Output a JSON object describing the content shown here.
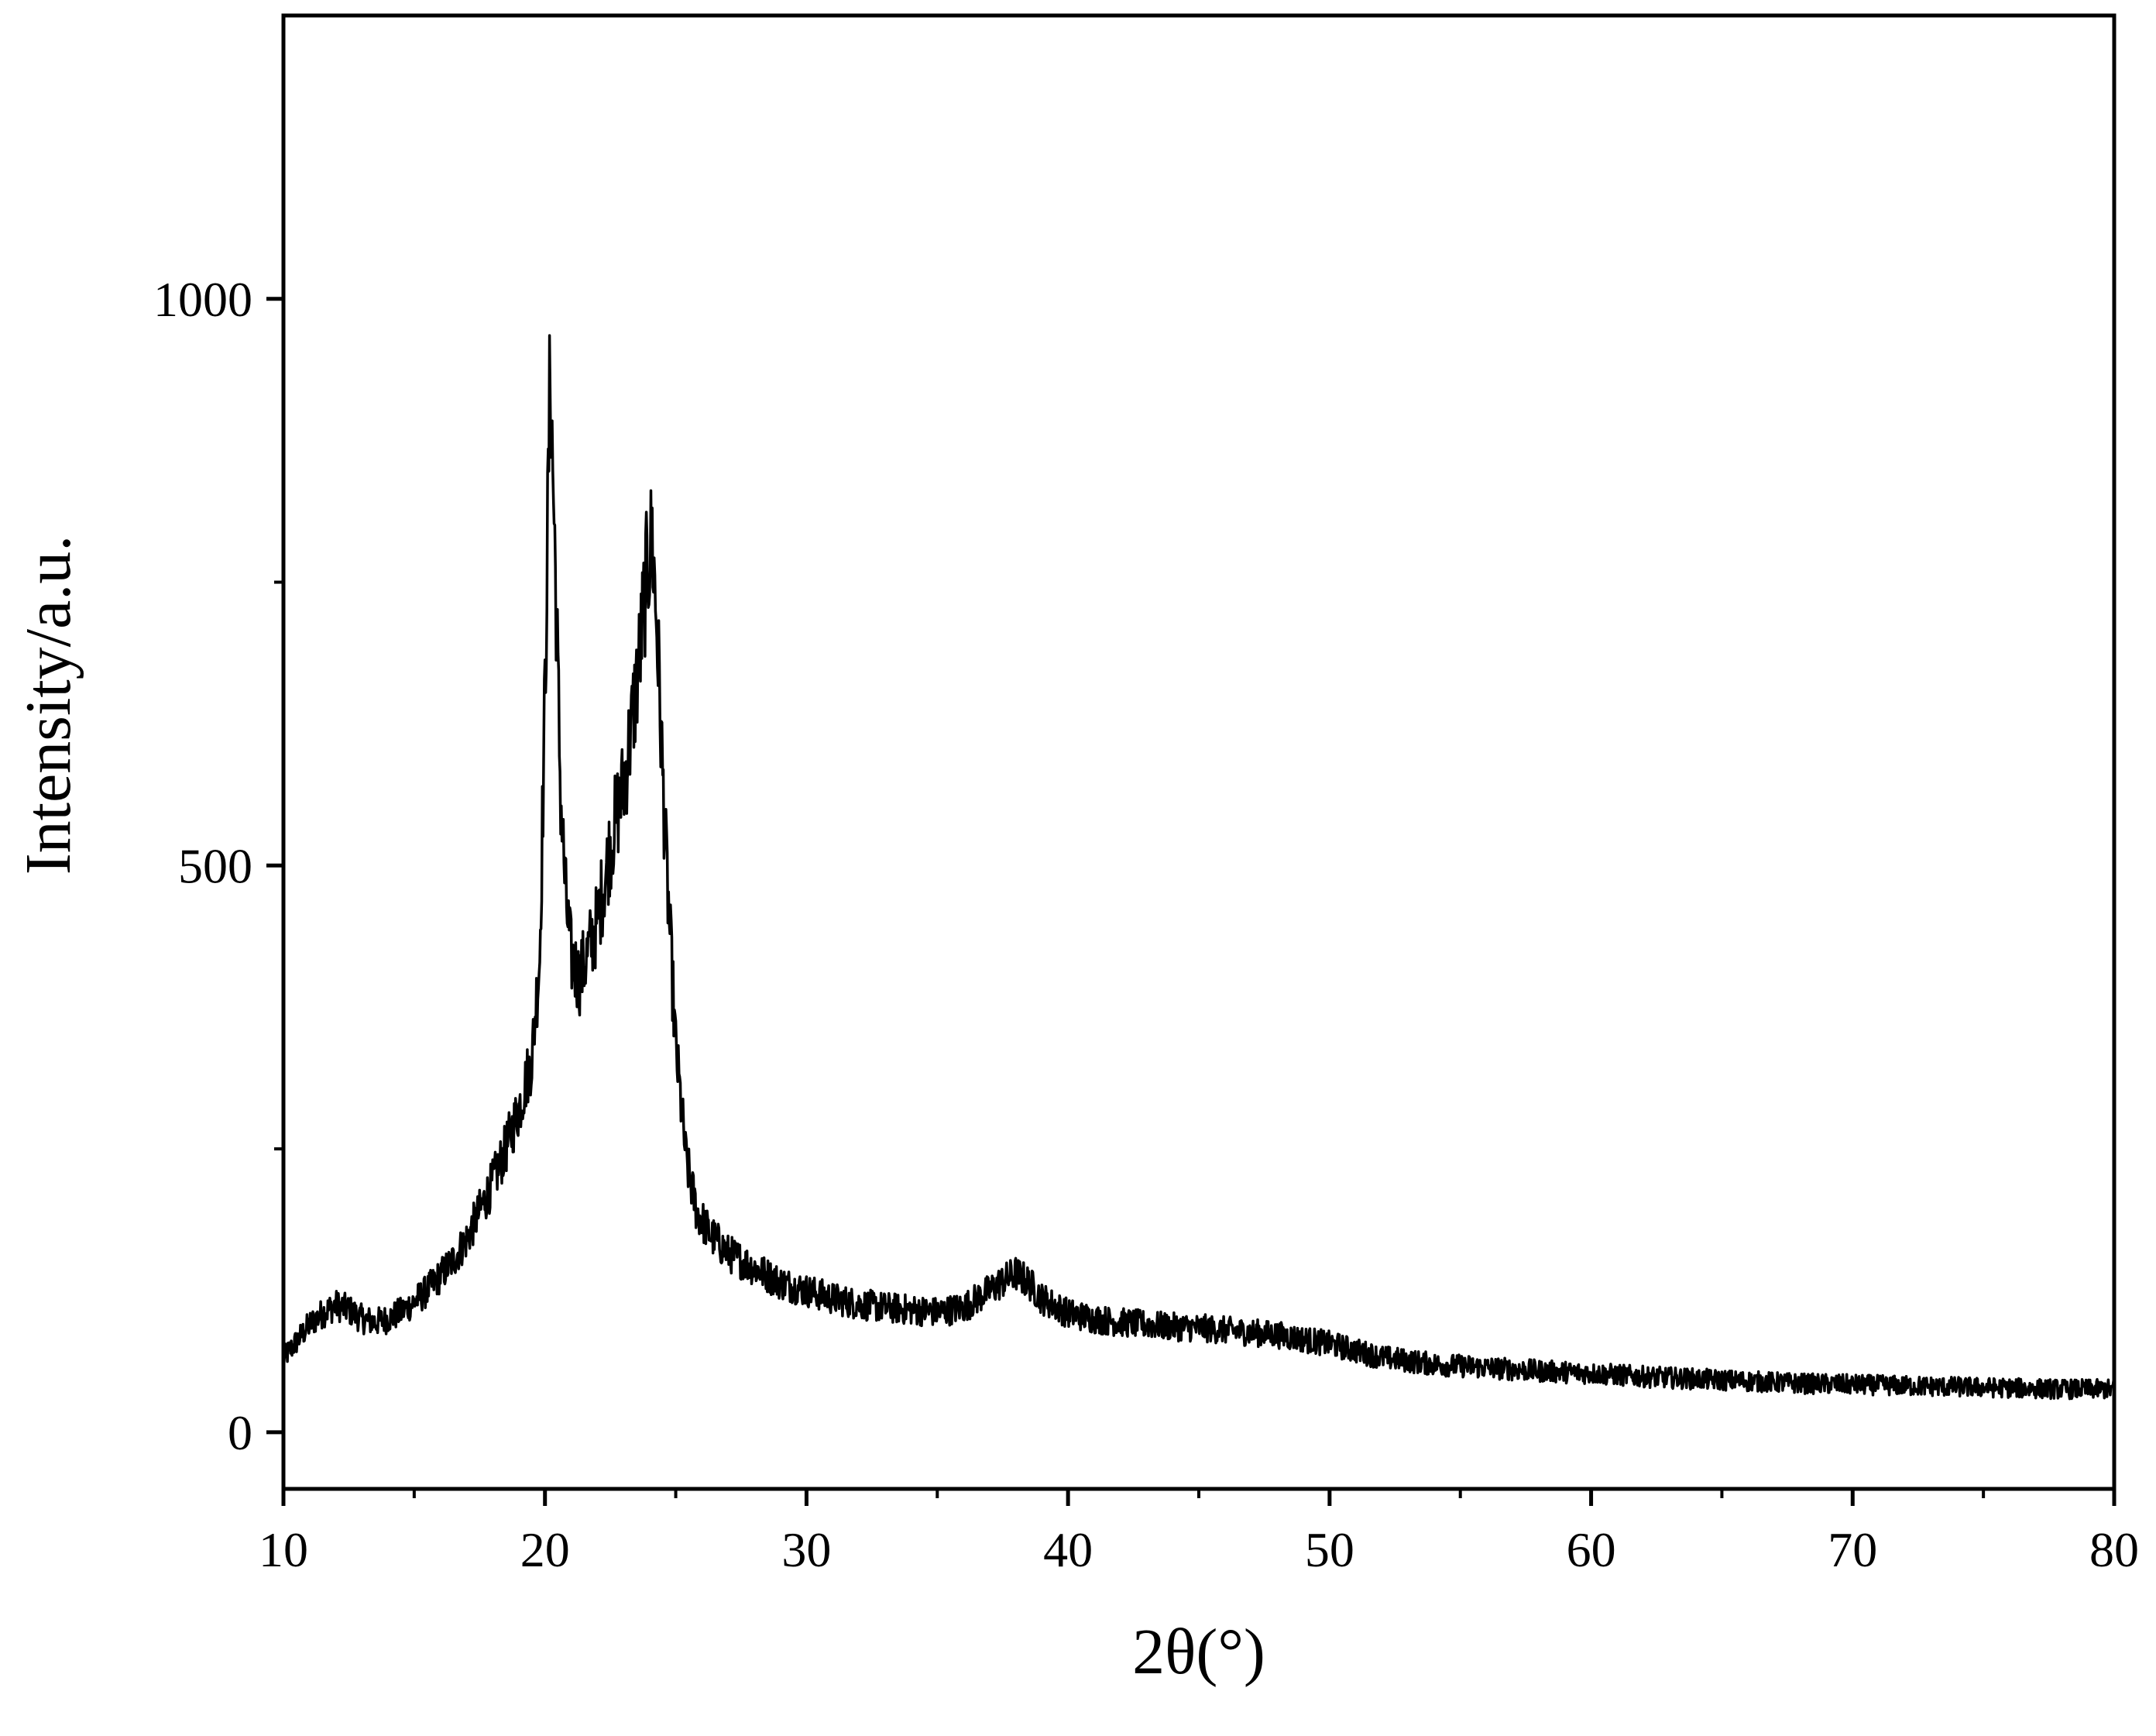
{
  "chart_data": {
    "type": "line",
    "title": "",
    "xlabel": "2θ(°)",
    "ylabel": "Intensity/a.u.",
    "xlim": [
      10,
      80
    ],
    "ylim": [
      -50,
      1250
    ],
    "x_ticks": [
      10,
      20,
      30,
      40,
      50,
      60,
      70,
      80
    ],
    "x_tick_labels": [
      "10",
      "20",
      "30",
      "40",
      "50",
      "60",
      "70",
      "80"
    ],
    "x_minor_ticks": [
      15,
      25,
      35,
      45,
      55,
      65,
      75
    ],
    "y_ticks": [
      0,
      500,
      1000
    ],
    "y_tick_labels": [
      "0",
      "500",
      "1000"
    ],
    "y_minor_ticks": [
      250,
      750
    ],
    "grid": false,
    "legend": "none",
    "line_color": "#000000",
    "series": [
      {
        "x": [
          10.0,
          10.5,
          11.0,
          11.5,
          12.0,
          12.5,
          13.0,
          13.5,
          14.0,
          14.5,
          15.0,
          15.5,
          16.0,
          16.5,
          17.0,
          17.5,
          18.0,
          18.5,
          19.0,
          19.5,
          19.8,
          20.0,
          20.2,
          20.4,
          20.6,
          20.8,
          21.0,
          21.3,
          21.6,
          22.0,
          22.3,
          22.6,
          23.0,
          23.3,
          23.6,
          23.9,
          24.1,
          24.3,
          24.6,
          25.0,
          25.4,
          25.8,
          26.3,
          27.0,
          28.0,
          29.0,
          30.0,
          31.0,
          32.0,
          33.0,
          34.0,
          35.0,
          36.0,
          37.0,
          37.5,
          38.0,
          38.5,
          39.0,
          40.0,
          41.0,
          42.0,
          43.0,
          44.0,
          45.0,
          46.0,
          47.0,
          48.0,
          49.0,
          50.0,
          51.0,
          52.0,
          54.0,
          56.0,
          58.0,
          60.0,
          62.0,
          64.0,
          66.0,
          68.0,
          70.0,
          72.0,
          74.0,
          76.0,
          78.0,
          80.0
        ],
        "y": [
          65,
          80,
          95,
          105,
          112,
          108,
          100,
          97,
          100,
          106,
          115,
          125,
          138,
          152,
          170,
          195,
          220,
          250,
          285,
          330,
          420,
          650,
          940,
          760,
          560,
          470,
          420,
          400,
          420,
          450,
          490,
          530,
          570,
          620,
          680,
          760,
          790,
          700,
          520,
          340,
          240,
          195,
          175,
          158,
          145,
          132,
          125,
          118,
          113,
          110,
          108,
          106,
          110,
          125,
          133,
          140,
          132,
          118,
          105,
          100,
          97,
          95,
          93,
          92,
          90,
          88,
          86,
          82,
          78,
          72,
          66,
          60,
          57,
          54,
          52,
          49,
          47,
          45,
          43,
          42,
          41,
          40,
          39,
          38,
          38
        ]
      }
    ]
  }
}
